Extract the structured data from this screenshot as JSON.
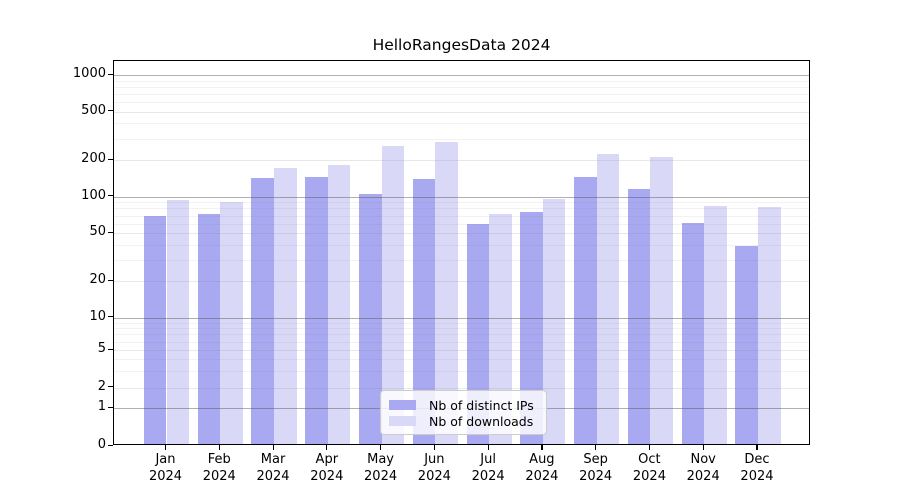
{
  "figure": {
    "title": "HelloRangesData 2024"
  },
  "chart_data": {
    "type": "bar",
    "title": "HelloRangesData 2024",
    "categories": [
      "Jan 2024",
      "Feb 2024",
      "Mar 2024",
      "Apr 2024",
      "May 2024",
      "Jun 2024",
      "Jul 2024",
      "Aug 2024",
      "Sep 2024",
      "Oct 2024",
      "Nov 2024",
      "Dec 2024"
    ],
    "series": [
      {
        "name": "Nb of distinct IPs",
        "color": "#a9a9f1",
        "values": [
          67,
          70,
          138,
          141,
          102,
          135,
          57,
          72,
          141,
          112,
          58,
          38
        ]
      },
      {
        "name": "Nb of downloads",
        "color": "#d9d9f7",
        "values": [
          90,
          87,
          165,
          175,
          252,
          272,
          70,
          92,
          216,
          205,
          80,
          79
        ]
      }
    ],
    "xlabel": "",
    "ylabel": "",
    "yscale": "symlog",
    "y_ticks": [
      0,
      1,
      2,
      5,
      10,
      20,
      50,
      100,
      200,
      500,
      1000
    ],
    "ylim": [
      0,
      1300
    ],
    "grid": true,
    "legend_position": "lower center"
  },
  "legend": {
    "items": [
      {
        "label": "Nb of distinct IPs",
        "color": "#a9a9f1"
      },
      {
        "label": "Nb of downloads",
        "color": "#d9d9f7"
      }
    ]
  },
  "colors": {
    "series1": "#a9a9f1",
    "series2": "#d9d9f7",
    "grid_strong": "rgba(80,80,80,0.45)",
    "grid_light": "rgba(130,130,130,0.18)",
    "grid_minor": "rgba(130,130,130,0.10)"
  }
}
